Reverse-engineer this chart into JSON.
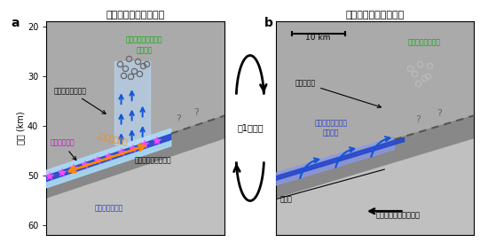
{
  "title_a": "ゆっくりすべり発生時",
  "title_b": "ゆっくりすべり終了後",
  "label_a": "a",
  "label_b": "b",
  "ylabel": "深さ (km)",
  "yticks": [
    20,
    30,
    40,
    50,
    60
  ],
  "cycle_label": "約1年周期",
  "scale_bar_label": "10 km",
  "panel_a": {
    "water_induced": "水により誘発された\n地震活動",
    "seismic_wave": "地震波減衰の増加",
    "repeating_eq": "繰り返し地震",
    "slow_slip": "ゆっくりすべり",
    "hydrated": "含水化した海洋地殻",
    "high_fluid": "高い流体圧の水"
  },
  "panel_b": {
    "quiescence": "地震活動の静穏化",
    "attenuation": "減衰の減少",
    "water_supply": "海洋性地殻からの\n水の供給",
    "moho": "モホ面",
    "philippine": "フィリピン海プレート"
  },
  "colors": {
    "green_text": "#00aa00",
    "blue_arrow": "#1155dd",
    "orange_text": "#ff8800",
    "magenta_star": "#ff44ff",
    "light_blue_glow": "#99ccff",
    "overriding_plate": "#aaaaaa",
    "oceanic_crust": "#888888",
    "mantle_gray": "#bbbbbb",
    "blue_band": "#2233cc",
    "purple_glow": "#9999ff",
    "faded_circle": "#aaaaaa",
    "dark_circle": "#666666"
  }
}
